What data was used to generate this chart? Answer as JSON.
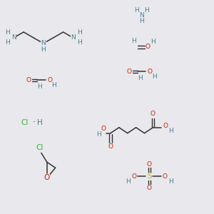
{
  "bg_color": "#e8e8ed",
  "colors": {
    "N": "#4a8090",
    "O": "#cc2200",
    "C": "#222222",
    "H": "#4a8090",
    "Cl": "#33bb33",
    "S": "#bbbb00",
    "bond": "#333333"
  },
  "fs": 6.5
}
